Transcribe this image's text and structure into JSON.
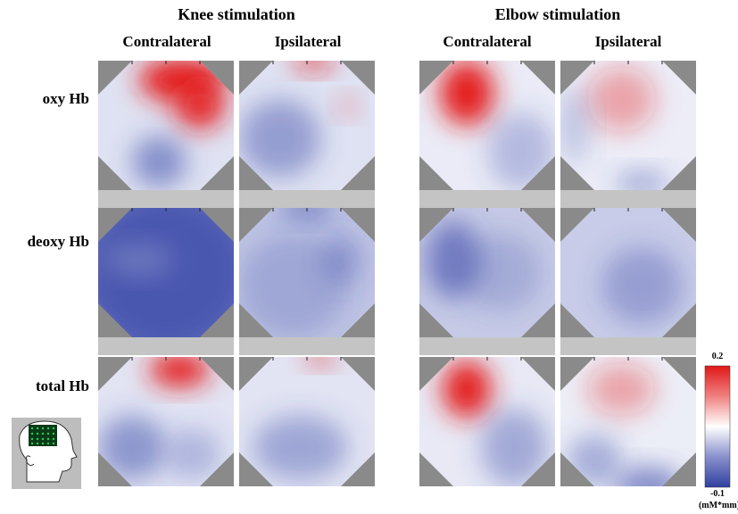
{
  "figure": {
    "groups": [
      {
        "title": "Knee stimulation",
        "columns": [
          "Contralateral",
          "Ipsilateral"
        ]
      },
      {
        "title": "Elbow stimulation",
        "columns": [
          "Contralateral",
          "Ipsilateral"
        ]
      }
    ],
    "rows": [
      "oxy Hb",
      "deoxy Hb",
      "total Hb"
    ],
    "colorbar": {
      "max": 0.2,
      "min": -0.1,
      "unit": "(mM*mm)"
    }
  }
}
